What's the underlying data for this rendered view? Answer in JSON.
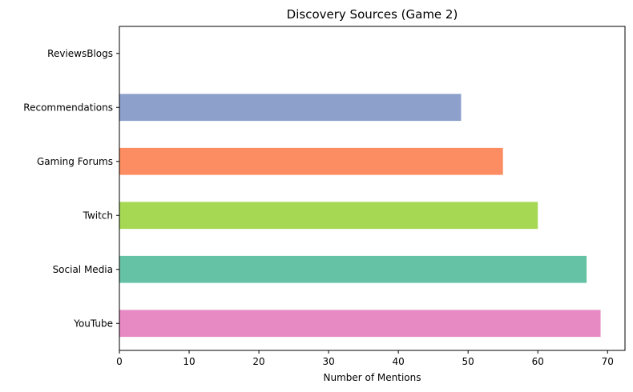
{
  "chart_data": {
    "type": "bar",
    "orientation": "horizontal",
    "title": "Discovery Sources (Game 2)",
    "xlabel": "Number of Mentions",
    "ylabel": "",
    "categories": [
      "ReviewsBlogs",
      "Recommendations",
      "Gaming Forums",
      "Twitch",
      "Social Media",
      "YouTube"
    ],
    "values": [
      0,
      49,
      55,
      60,
      67,
      69
    ],
    "colors": [
      "#ffd92f",
      "#8da0cb",
      "#fc8d62",
      "#a6d854",
      "#66c2a5",
      "#e78ac3"
    ],
    "xlim": [
      0,
      72.5
    ],
    "xticks": [
      0,
      10,
      20,
      30,
      40,
      50,
      60,
      70
    ],
    "grid": false,
    "legend": "none"
  }
}
